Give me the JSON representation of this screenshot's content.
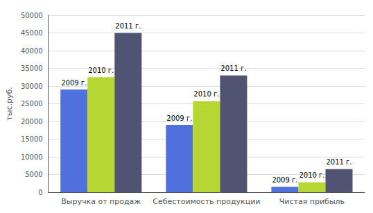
{
  "chart_data": {
    "type": "bar",
    "categories": [
      "Выручка от продаж",
      "Себестоимость продукции",
      "Чистая прибыль"
    ],
    "series": [
      {
        "name": "2009 г.",
        "values": [
          29000,
          19000,
          1500
        ],
        "value_labels": [
          "2009 г.",
          "2009 г.",
          "2009 г."
        ]
      },
      {
        "name": "2010 г.",
        "values": [
          32500,
          25700,
          2800
        ],
        "value_labels": [
          "2010 г.",
          "2010 г.",
          "2010 г."
        ]
      },
      {
        "name": "2011 г.",
        "values": [
          45000,
          33000,
          6500
        ],
        "value_labels": [
          "2011 г.",
          "2011 г.",
          "2011 г."
        ]
      }
    ],
    "ylabel": "тыс.руб.",
    "ylim": [
      0,
      50000
    ],
    "yticks": [
      0,
      5000,
      10000,
      15000,
      20000,
      25000,
      30000,
      35000,
      40000,
      45000,
      50000
    ],
    "grid": true
  }
}
